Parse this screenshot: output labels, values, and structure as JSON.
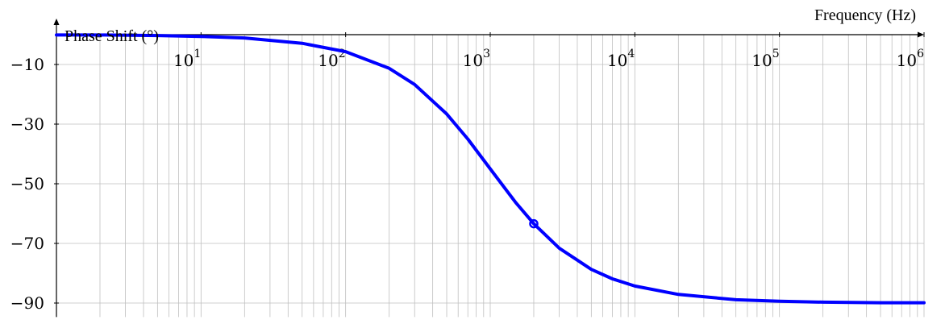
{
  "chart_data": {
    "type": "line",
    "xscale": "log",
    "xlabel": "Frequency (Hz)",
    "ylabel": "Phase Shift (°)",
    "xlim": [
      1,
      1000000
    ],
    "ylim": [
      -92,
      0
    ],
    "grid": true,
    "x_tick_labels": [
      {
        "base": "10",
        "exp": "1"
      },
      {
        "base": "10",
        "exp": "2"
      },
      {
        "base": "10",
        "exp": "3"
      },
      {
        "base": "10",
        "exp": "4"
      },
      {
        "base": "10",
        "exp": "5"
      },
      {
        "base": "10",
        "exp": "6"
      }
    ],
    "x_ticks": [
      10,
      100,
      1000,
      10000,
      100000,
      1000000
    ],
    "y_ticks": [
      -10,
      -30,
      -50,
      -70,
      -90
    ],
    "y_tick_labels": [
      "−10",
      "−30",
      "−50",
      "−70",
      "−90"
    ],
    "series": [
      {
        "color": "#0000ff",
        "x": [
          1,
          2,
          5,
          10,
          20,
          50,
          100,
          200,
          300,
          500,
          700,
          1000,
          1500,
          2000,
          3000,
          5000,
          7000,
          10000,
          20000,
          50000,
          100000,
          200000,
          500000,
          1000000
        ],
        "y": [
          -0.1,
          -0.1,
          -0.3,
          -0.6,
          -1.1,
          -2.9,
          -5.7,
          -11.3,
          -16.7,
          -26.6,
          -35.0,
          -45.0,
          -56.3,
          -63.4,
          -71.6,
          -78.7,
          -81.9,
          -84.3,
          -87.1,
          -88.9,
          -89.4,
          -89.7,
          -89.9,
          -89.9
        ]
      }
    ],
    "marker": {
      "x": 2000,
      "y": -63.4,
      "color": "#0000ff"
    },
    "colors": {
      "line": "#0000ff",
      "grid": "#bfbfbf",
      "axis": "#000000"
    }
  }
}
